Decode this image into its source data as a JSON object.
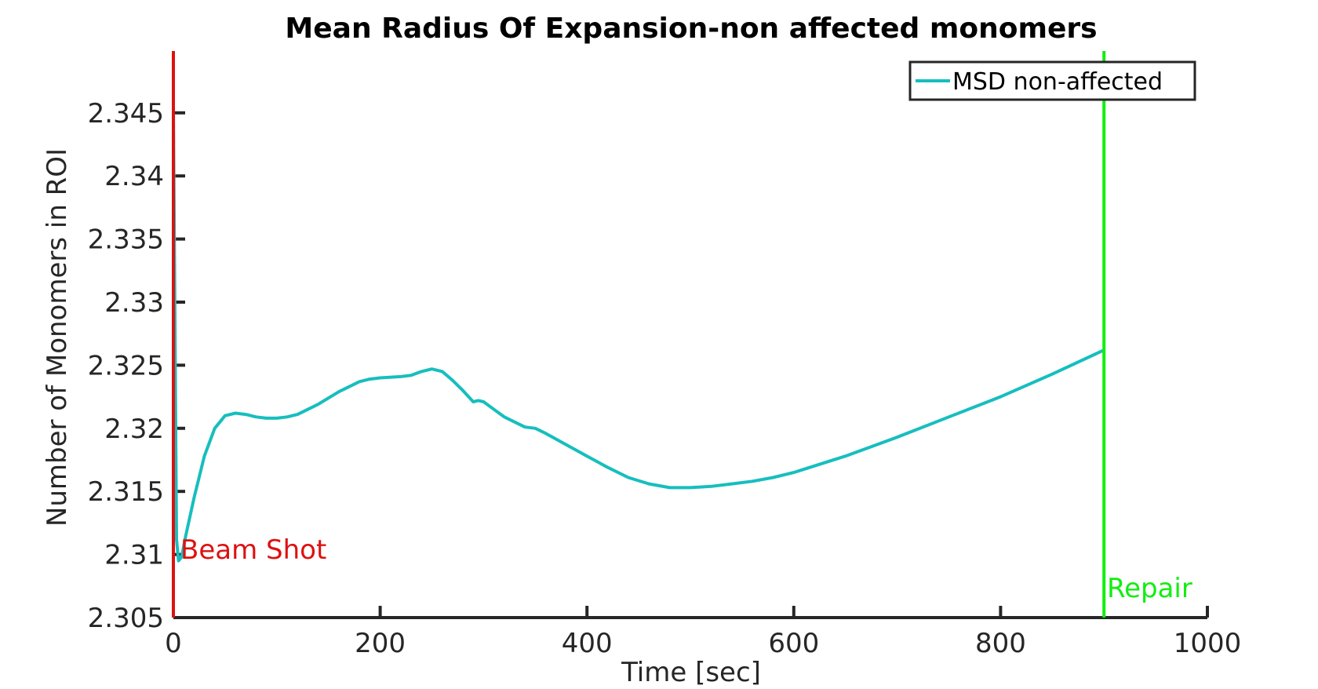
{
  "chart_data": {
    "type": "line",
    "title": "Mean Radius Of Expansion-non affected monomers",
    "xlabel": "Time [sec]",
    "ylabel": "Number of Monomers in ROI",
    "xlim": [
      0,
      1000
    ],
    "ylim": [
      2.305,
      2.35
    ],
    "xticks": [
      0,
      200,
      400,
      600,
      800,
      1000
    ],
    "xtick_labels": [
      "0",
      "200",
      "400",
      "600",
      "800",
      "1000"
    ],
    "yticks": [
      2.305,
      2.31,
      2.315,
      2.32,
      2.325,
      2.33,
      2.335,
      2.34,
      2.345
    ],
    "ytick_labels": [
      "2.305",
      "2.31",
      "2.315",
      "2.32",
      "2.325",
      "2.33",
      "2.335",
      "2.34",
      "2.345"
    ],
    "grid": false,
    "legend": {
      "placement": "top-right",
      "entries": [
        "MSD non-affected"
      ]
    },
    "series": [
      {
        "name": "MSD non-affected",
        "color": "#17bebe",
        "x": [
          0,
          3,
          5,
          8,
          12,
          20,
          30,
          40,
          50,
          60,
          70,
          80,
          90,
          100,
          110,
          120,
          140,
          160,
          180,
          190,
          200,
          220,
          230,
          240,
          250,
          260,
          270,
          280,
          290,
          295,
          300,
          310,
          320,
          340,
          350,
          360,
          380,
          400,
          420,
          440,
          460,
          480,
          500,
          520,
          540,
          560,
          580,
          600,
          650,
          700,
          750,
          800,
          850,
          900
        ],
        "y": [
          2.3455,
          2.3112,
          2.3095,
          2.3098,
          2.3115,
          2.3145,
          2.3178,
          2.32,
          2.321,
          2.3212,
          2.3211,
          2.3209,
          2.3208,
          2.3208,
          2.3209,
          2.3211,
          2.3219,
          2.3229,
          2.3237,
          2.3239,
          2.324,
          2.3241,
          2.3242,
          2.3245,
          2.3247,
          2.3245,
          2.3238,
          2.323,
          2.3221,
          2.3222,
          2.3221,
          2.3215,
          2.3209,
          2.3201,
          2.32,
          2.3196,
          2.3187,
          2.3178,
          2.3169,
          2.3161,
          2.3156,
          2.3153,
          2.3153,
          2.3154,
          2.3156,
          2.3158,
          2.3161,
          2.3165,
          2.3178,
          2.3193,
          2.3209,
          2.3225,
          2.3243,
          2.3262
        ]
      }
    ],
    "annotations": [
      {
        "label": "Beam Shot",
        "x": 0,
        "color": "#dd1111"
      },
      {
        "label": "Repair",
        "x": 900,
        "color": "#11ee11"
      }
    ]
  }
}
